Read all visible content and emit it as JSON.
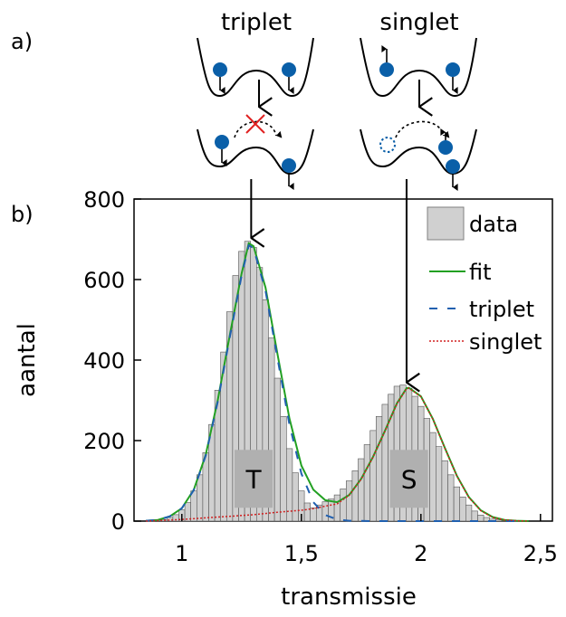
{
  "panel_labels": {
    "a": "a)",
    "b": "b)"
  },
  "schematic": {
    "triplet_label": "triplet",
    "singlet_label": "singlet",
    "colors": {
      "electron": "#0a5fa8",
      "blocked": "#e02020",
      "well": "#000000"
    }
  },
  "chart_data": {
    "type": "bar",
    "xlabel": "transmissie",
    "ylabel": "aantal",
    "xlim": [
      0.8,
      2.55
    ],
    "ylim": [
      0,
      800
    ],
    "xticks": [
      1,
      1.5,
      2,
      2.5
    ],
    "xtick_labels": [
      "1",
      "1,5",
      "2",
      "2,5"
    ],
    "yticks": [
      0,
      200,
      400,
      600,
      800
    ],
    "ytick_labels": [
      "0",
      "200",
      "400",
      "600",
      "800"
    ],
    "grid": false,
    "legend_position": "top-right",
    "bin_width": 0.025,
    "histogram": {
      "name": "data",
      "color": "#d0d0d0",
      "x": [
        0.875,
        0.9,
        0.925,
        0.95,
        0.975,
        1.0,
        1.025,
        1.05,
        1.075,
        1.1,
        1.125,
        1.15,
        1.175,
        1.2,
        1.225,
        1.25,
        1.275,
        1.3,
        1.325,
        1.35,
        1.375,
        1.4,
        1.425,
        1.45,
        1.475,
        1.5,
        1.525,
        1.55,
        1.575,
        1.6,
        1.625,
        1.65,
        1.675,
        1.7,
        1.725,
        1.75,
        1.775,
        1.8,
        1.825,
        1.85,
        1.875,
        1.9,
        1.925,
        1.95,
        1.975,
        2.0,
        2.025,
        2.05,
        2.075,
        2.1,
        2.125,
        2.15,
        2.175,
        2.2,
        2.225,
        2.25,
        2.275,
        2.3,
        2.325,
        2.35,
        2.375,
        2.4,
        2.425
      ],
      "values": [
        1,
        2,
        4,
        9,
        16,
        28,
        46,
        75,
        115,
        170,
        240,
        325,
        420,
        520,
        610,
        670,
        695,
        680,
        630,
        550,
        455,
        355,
        260,
        180,
        120,
        75,
        45,
        33,
        40,
        48,
        55,
        65,
        80,
        100,
        125,
        155,
        190,
        225,
        260,
        290,
        315,
        335,
        338,
        330,
        310,
        285,
        255,
        220,
        185,
        150,
        115,
        85,
        60,
        40,
        25,
        15,
        9,
        5,
        3,
        1,
        1,
        0,
        0
      ]
    },
    "series": [
      {
        "name": "fit",
        "style": "solid",
        "color": "#22a022",
        "x": [
          0.85,
          0.9,
          0.95,
          1.0,
          1.05,
          1.1,
          1.15,
          1.2,
          1.25,
          1.28,
          1.3,
          1.35,
          1.4,
          1.45,
          1.5,
          1.55,
          1.6,
          1.65,
          1.7,
          1.75,
          1.8,
          1.85,
          1.9,
          1.94,
          1.95,
          2.0,
          2.05,
          2.1,
          2.15,
          2.2,
          2.25,
          2.3,
          2.35,
          2.4,
          2.45
        ],
        "y": [
          1,
          3,
          12,
          32,
          78,
          165,
          300,
          460,
          615,
          690,
          683,
          580,
          415,
          255,
          138,
          78,
          52,
          47,
          65,
          105,
          160,
          225,
          293,
          330,
          331,
          310,
          254,
          182,
          113,
          60,
          27,
          10,
          3,
          1,
          0
        ]
      },
      {
        "name": "triplet",
        "style": "dashed",
        "color": "#2060b0",
        "x": [
          0.85,
          0.9,
          0.95,
          1.0,
          1.05,
          1.1,
          1.15,
          1.2,
          1.25,
          1.28,
          1.3,
          1.35,
          1.4,
          1.45,
          1.5,
          1.55,
          1.6,
          1.65,
          1.7,
          1.8,
          1.9,
          2.0,
          2.1,
          2.2,
          2.3,
          2.4
        ],
        "y": [
          1,
          3,
          12,
          32,
          77,
          163,
          296,
          455,
          610,
          685,
          678,
          572,
          405,
          240,
          118,
          47,
          15,
          4,
          1,
          0,
          0,
          0,
          0,
          0,
          0,
          0
        ]
      },
      {
        "name": "singlet",
        "style": "dotted",
        "color": "#d02020",
        "x": [
          0.85,
          1.0,
          1.1,
          1.2,
          1.3,
          1.4,
          1.5,
          1.55,
          1.6,
          1.65,
          1.7,
          1.75,
          1.8,
          1.85,
          1.9,
          1.94,
          1.95,
          2.0,
          2.05,
          2.1,
          2.15,
          2.2,
          2.25,
          2.3,
          2.35,
          2.4,
          2.45
        ],
        "y": [
          0,
          4,
          8,
          12,
          16,
          22,
          27,
          31,
          37,
          43,
          64,
          104,
          159,
          224,
          292,
          329,
          330,
          309,
          253,
          181,
          112,
          59,
          26,
          9,
          3,
          1,
          0
        ]
      }
    ],
    "annotations": [
      {
        "text": "T",
        "x": 1.3,
        "y": 105,
        "box_color": "#b0b0b0"
      },
      {
        "text": "S",
        "x": 1.95,
        "y": 105,
        "box_color": "#b0b0b0"
      }
    ],
    "arrows": [
      {
        "label": "triplet-to-peak",
        "x": 1.29
      },
      {
        "label": "singlet-to-peak",
        "x": 1.94
      }
    ]
  }
}
